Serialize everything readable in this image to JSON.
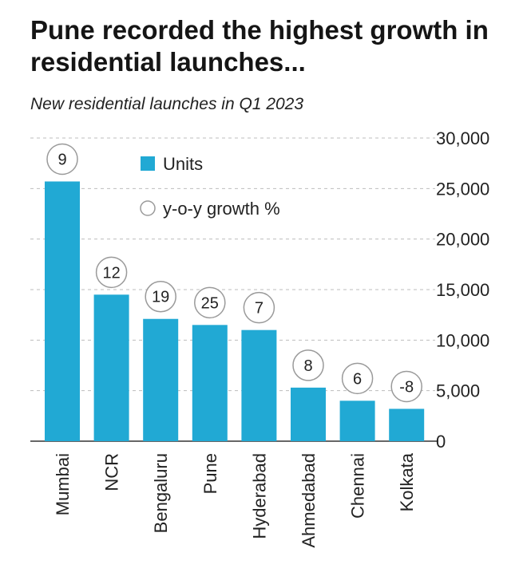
{
  "title": "Pune recorded the highest growth in residential launches...",
  "subtitle": "New residential launches in Q1 2023",
  "chart_data": {
    "type": "bar",
    "categories": [
      "Mumbai",
      "NCR",
      "Bengaluru",
      "Pune",
      "Hyderabad",
      "Ahmedabad",
      "Chennai",
      "Kolkata"
    ],
    "series": [
      {
        "name": "Units",
        "values": [
          25700,
          14500,
          12100,
          11500,
          11000,
          5300,
          4000,
          3200
        ]
      },
      {
        "name": "y-o-y growth %",
        "values": [
          9,
          12,
          19,
          25,
          7,
          8,
          6,
          -8
        ]
      }
    ],
    "ylim": [
      0,
      30000
    ],
    "yticks": [
      0,
      5000,
      10000,
      15000,
      20000,
      25000,
      30000
    ],
    "ytick_labels": [
      "0",
      "5,000",
      "10,000",
      "15,000",
      "20,000",
      "25,000",
      "30,000"
    ],
    "y_axis_side": "right",
    "grid": "dashed-horizontal",
    "legend": "top-left",
    "colors": {
      "bar": "#21a9d4",
      "circle_stroke": "#9a9a9a",
      "grid": "#bdbdbd"
    }
  }
}
